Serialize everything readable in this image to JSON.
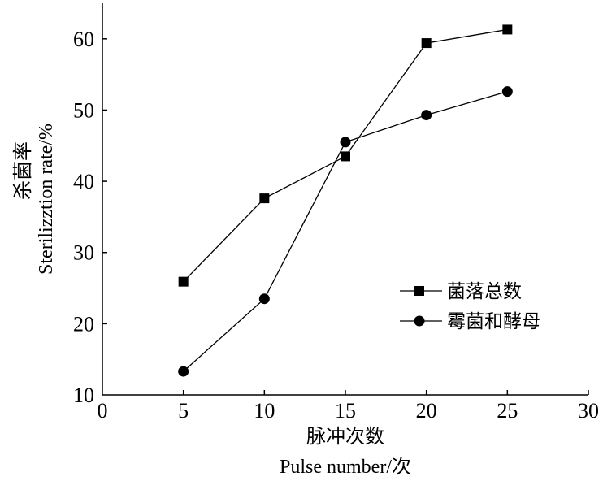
{
  "chart_data": {
    "type": "line",
    "x": [
      5,
      10,
      15,
      20,
      25
    ],
    "series": [
      {
        "name": "菌落总数",
        "marker": "square",
        "values": [
          25.9,
          37.6,
          43.5,
          59.4,
          61.3
        ]
      },
      {
        "name": "霉菌和酵母",
        "marker": "circle",
        "values": [
          13.3,
          23.5,
          45.5,
          49.3,
          52.6
        ]
      }
    ],
    "xlim": [
      0,
      30
    ],
    "ylim": [
      10,
      65
    ],
    "xticks": [
      0,
      5,
      10,
      15,
      20,
      25,
      30
    ],
    "yticks": [
      10,
      20,
      30,
      40,
      50,
      60
    ],
    "xlabel": {
      "cn": "脉冲次数",
      "en": "Pulse number/次"
    },
    "ylabel": {
      "cn": "杀菌率",
      "en": "Sterilizztion rate/%"
    },
    "legend_position": "right",
    "grid": false,
    "colors": {
      "line": "#000000",
      "marker": "#000000",
      "background": "#ffffff"
    }
  }
}
